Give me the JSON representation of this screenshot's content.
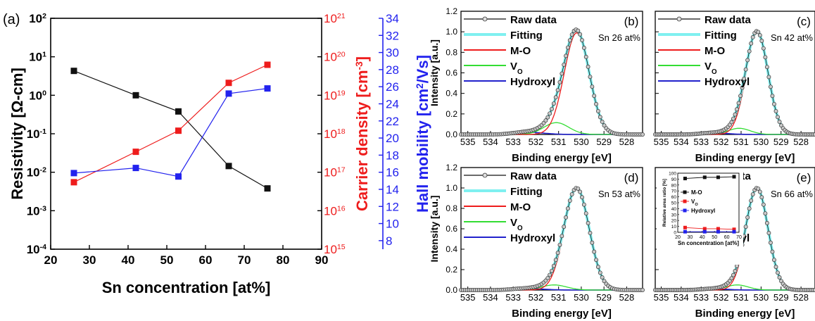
{
  "chart_data": [
    {
      "panel": "(a)",
      "type": "scatter",
      "xlabel": "Sn concentration [at%]",
      "x_ticks": [
        "20",
        "30",
        "40",
        "50",
        "60",
        "70",
        "80",
        "90"
      ],
      "xlim": [
        20,
        90
      ],
      "axes": {
        "resistivity": {
          "label": "Resistivity [Ω-cm]",
          "scale": "log",
          "ylim": [
            0.0001,
            100
          ],
          "ticks": [
            "10",
            "10",
            "10",
            "10",
            "10",
            "10",
            "10"
          ],
          "tick_exps": [
            "-4",
            "-3",
            "-2",
            "-1",
            "0",
            "1",
            "2"
          ],
          "color": "#111111"
        },
        "carrier": {
          "label": "Carrier density [cm",
          "label_sup": "-3",
          "label_end": "]",
          "scale": "log",
          "ylim": [
            1000000000000000.0,
            1e+21
          ],
          "ticks": [
            "10",
            "10",
            "10",
            "10",
            "10",
            "10",
            "10"
          ],
          "tick_exps": [
            "15",
            "16",
            "17",
            "18",
            "19",
            "20",
            "21"
          ],
          "color": "#ee1c1c"
        },
        "mobility": {
          "label": "Hall mobility [cm",
          "label_sup": "2",
          "label_end": "/Vs]",
          "scale": "linear",
          "ylim": [
            7,
            34
          ],
          "ticks": [
            "8",
            "10",
            "12",
            "14",
            "16",
            "18",
            "20",
            "22",
            "24",
            "26",
            "28",
            "30",
            "32",
            "34"
          ],
          "color": "#2222ee"
        }
      },
      "series": [
        {
          "axis": "resistivity",
          "color": "#111111",
          "x": [
            26,
            42,
            53,
            66,
            76
          ],
          "y": [
            4.3,
            1.0,
            0.38,
            0.0145,
            0.0038
          ]
        },
        {
          "axis": "carrier",
          "color": "#ee1c1c",
          "x": [
            26,
            42,
            53,
            66,
            76
          ],
          "y": [
            5.5e+16,
            3.4e+17,
            1.2e+18,
            2.1e+19,
            6.2e+19
          ]
        },
        {
          "axis": "mobility",
          "color": "#2222ee",
          "x": [
            26,
            42,
            53,
            66,
            76
          ],
          "y": [
            15.9,
            16.5,
            15.5,
            25.2,
            25.8
          ]
        }
      ]
    },
    {
      "type": "line",
      "xlabel": "Binding energy [eV]",
      "ylabel": "Intensity [a.u.]",
      "x_ticks": [
        "535",
        "534",
        "533",
        "532",
        "531",
        "530",
        "529",
        "528"
      ],
      "xlim": [
        535.3,
        527.3
      ],
      "ylim": [
        0,
        1.2
      ],
      "y_ticks": [
        "0.0",
        "0.2",
        "0.4",
        "0.6",
        "0.8",
        "1.0",
        "1.2"
      ],
      "legend": [
        "Raw data",
        "Fitting",
        "M-O",
        "V",
        "Hydroxyl"
      ],
      "legend_sub": "O",
      "legend_colors": [
        "#111111",
        "#7ff0f0",
        "#ee1c1c",
        "#33dd33",
        "#2222cc"
      ],
      "panels": [
        {
          "label": "(b)",
          "sample": "Sn 26 at%",
          "mo": {
            "amp": 0.99,
            "center": 530.2,
            "sigma": 0.55
          },
          "vo": {
            "amp": 0.115,
            "center": 531.1,
            "sigma": 0.55
          },
          "hy": {
            "amp": 0.012,
            "center": 532.0,
            "sigma": 0.6
          },
          "shoulder": {
            "amp": 0.015,
            "center": 532.6,
            "sigma": 0.5
          }
        },
        {
          "label": "(c)",
          "sample": "Sn 42 at%",
          "mo": {
            "amp": 0.99,
            "center": 530.2,
            "sigma": 0.55
          },
          "vo": {
            "amp": 0.06,
            "center": 531.1,
            "sigma": 0.55
          },
          "hy": {
            "amp": 0.008,
            "center": 532.0,
            "sigma": 0.6
          },
          "shoulder": {
            "amp": 0.01,
            "center": 532.6,
            "sigma": 0.5
          }
        },
        {
          "label": "(d)",
          "sample": "Sn 53 at%",
          "mo": {
            "amp": 0.99,
            "center": 530.2,
            "sigma": 0.55
          },
          "vo": {
            "amp": 0.05,
            "center": 531.2,
            "sigma": 0.55
          },
          "hy": {
            "amp": 0.008,
            "center": 532.0,
            "sigma": 0.6
          },
          "shoulder": {
            "amp": 0.01,
            "center": 532.6,
            "sigma": 0.5
          }
        },
        {
          "label": "(e)",
          "sample": "Sn 66 at%",
          "mo": {
            "amp": 0.99,
            "center": 530.2,
            "sigma": 0.55
          },
          "vo": {
            "amp": 0.05,
            "center": 531.2,
            "sigma": 0.55
          },
          "hy": {
            "amp": 0.006,
            "center": 532.0,
            "sigma": 0.6
          },
          "shoulder": {
            "amp": 0.008,
            "center": 532.6,
            "sigma": 0.5
          }
        }
      ],
      "inset": {
        "xlabel": "Sn concentration [at%]",
        "ylabel": "Relative area ratio [%]",
        "x_ticks": [
          "20",
          "30",
          "40",
          "50",
          "60",
          "70"
        ],
        "y_ticks": [
          "0",
          "10",
          "20",
          "30",
          "40",
          "50",
          "60",
          "70",
          "80",
          "90",
          "100"
        ],
        "xlim": [
          20,
          70
        ],
        "ylim": [
          0,
          100
        ],
        "legend": [
          "M-O",
          "V",
          "Hydroxyl"
        ],
        "legend_sub": "O",
        "series": [
          {
            "color": "#111111",
            "x": [
              26,
              42,
              53,
              66
            ],
            "y": [
              91,
              93,
              93,
              94
            ]
          },
          {
            "color": "#ee1c1c",
            "x": [
              26,
              42,
              53,
              66
            ],
            "y": [
              8,
              6,
              6,
              5
            ]
          },
          {
            "color": "#2222ee",
            "x": [
              26,
              42,
              53,
              66
            ],
            "y": [
              1,
              1,
              1,
              1
            ]
          }
        ]
      }
    }
  ]
}
